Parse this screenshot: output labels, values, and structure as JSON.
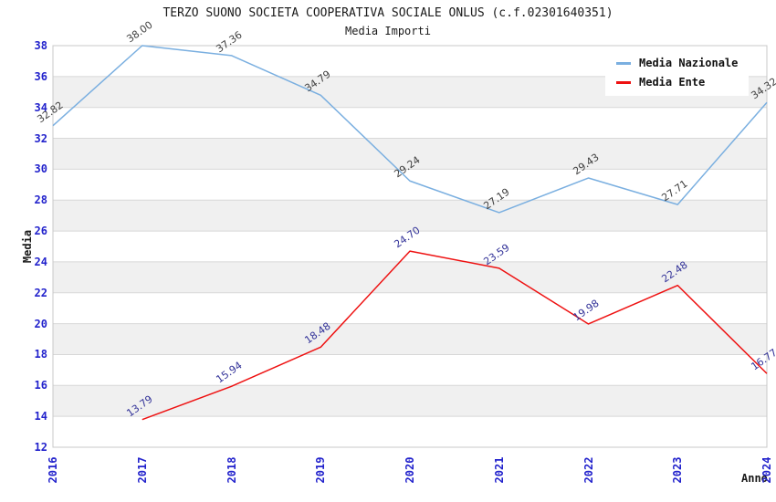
{
  "title": "TERZO SUONO SOCIETA COOPERATIVA SOCIALE ONLUS (c.f.02301640351)",
  "subtitle": "Media Importi",
  "chart_data": {
    "type": "line",
    "x": [
      "2016",
      "2017",
      "2018",
      "2019",
      "2020",
      "2021",
      "2022",
      "2023",
      "2024"
    ],
    "series": [
      {
        "name": "Media Nazionale",
        "color": "#7aafe0",
        "label_color": "#404040",
        "values": [
          32.82,
          38.0,
          37.36,
          34.79,
          29.24,
          27.19,
          29.43,
          27.71,
          34.32
        ]
      },
      {
        "name": "Media Ente",
        "color": "#ee1111",
        "label_color": "#333399",
        "values": [
          null,
          13.79,
          15.94,
          18.48,
          24.7,
          23.59,
          19.98,
          22.48,
          16.77
        ]
      }
    ],
    "xlabel": "Anno",
    "ylabel": "Media",
    "ylim": [
      12,
      38
    ],
    "ytick_step": 2,
    "yticks": [
      12,
      14,
      16,
      18,
      20,
      22,
      24,
      26,
      28,
      30,
      32,
      34,
      36,
      38
    ],
    "grid": true,
    "legend_position": "top-right",
    "colors": {
      "tick_label": "#2222cc",
      "band": "#f0f0f0",
      "gridline": "#d8d8d8",
      "plot_border": "#c8c8c8",
      "background": "#ffffff"
    }
  }
}
